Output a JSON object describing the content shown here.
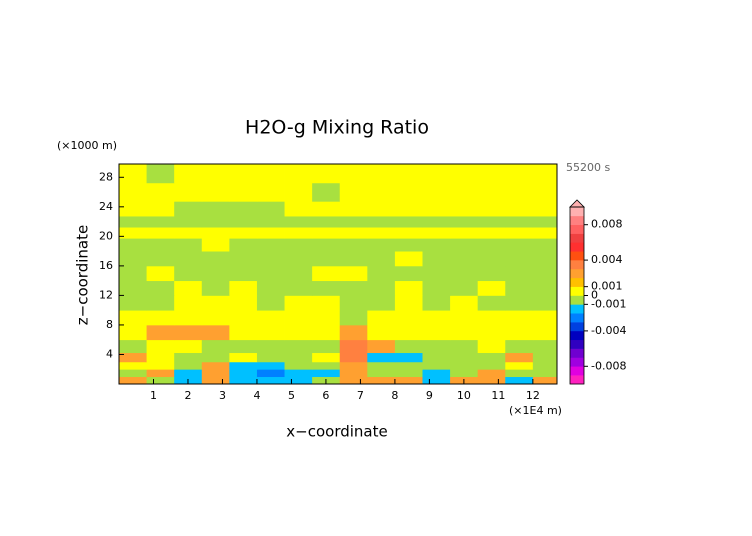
{
  "chart_data": {
    "type": "contour",
    "title": "H2O-g Mixing Ratio",
    "x_label": "x−coordinate",
    "y_label": "z−coordinate",
    "x_unit": "(×1E4 m)",
    "y_unit": "(×1000 m)",
    "time_label": "55200 s",
    "xlim": [
      0,
      12.7
    ],
    "ylim": [
      0,
      29.8
    ],
    "xticks": [
      1,
      2,
      3,
      4,
      5,
      6,
      7,
      8,
      9,
      10,
      11,
      12
    ],
    "yticks": [
      4,
      8,
      12,
      16,
      20,
      24,
      28
    ],
    "x": [
      0.4,
      1.2,
      2.0,
      2.8,
      3.6,
      4.4,
      5.2,
      6.0,
      6.8,
      7.6,
      8.4,
      9.2,
      10.0,
      10.8,
      11.6,
      12.4
    ],
    "y": [
      0.5,
      1.5,
      2.5,
      3.5,
      5,
      7,
      9,
      11,
      13,
      15,
      17,
      19,
      20.5,
      22,
      23.5,
      26,
      28.5
    ],
    "z": [
      [
        0.0025,
        -0.0005,
        -0.0015,
        0.0025,
        -0.0015,
        -0.0015,
        -0.0015,
        -0.0005,
        0.0025,
        0.0025,
        0.0025,
        -0.0015,
        0.0025,
        0.0025,
        -0.0015,
        0.0025
      ],
      [
        -0.0005,
        0.0025,
        -0.0015,
        0.0025,
        -0.0015,
        -0.0025,
        -0.0015,
        -0.0015,
        0.0025,
        -0.0005,
        -0.0005,
        -0.0015,
        -0.0005,
        0.0025,
        -0.0005,
        -0.0005
      ],
      [
        0.0005,
        0.0005,
        -0.0005,
        0.0025,
        -0.0015,
        -0.0015,
        -0.0005,
        -0.0005,
        0.0025,
        -0.0005,
        -0.0005,
        -0.0005,
        -0.0005,
        -0.0005,
        0.0005,
        -0.0005
      ],
      [
        0.0025,
        0.0005,
        -0.0005,
        -0.0005,
        0.0005,
        -0.0005,
        -0.0005,
        0.0005,
        0.0035,
        -0.0015,
        -0.0015,
        -0.0005,
        -0.0005,
        -0.0005,
        0.0025,
        -0.0005
      ],
      [
        -0.0005,
        0.0005,
        0.0005,
        -0.0005,
        -0.0005,
        -0.0005,
        -0.0005,
        -0.0005,
        0.0035,
        0.0025,
        -0.0005,
        -0.0005,
        -0.0005,
        0.0005,
        -0.0005,
        -0.0005
      ],
      [
        0.0005,
        0.0025,
        0.0025,
        0.0025,
        0.0005,
        0.0005,
        0.0005,
        0.0005,
        0.0025,
        0.0005,
        0.0005,
        0.0005,
        0.0005,
        0.0005,
        0.0005,
        0.0005
      ],
      [
        0.0005,
        0.0005,
        0.0005,
        0.0005,
        0.0005,
        0.0005,
        0.0005,
        0.0005,
        -0.0005,
        0.0005,
        0.0005,
        0.0005,
        0.0005,
        0.0005,
        0.0005,
        0.0005
      ],
      [
        -0.0005,
        -0.0005,
        0.0005,
        0.0005,
        0.0005,
        -0.0005,
        0.0005,
        0.0005,
        -0.0005,
        -0.0005,
        0.0005,
        -0.0005,
        0.0005,
        -0.0005,
        -0.0005,
        -0.0005
      ],
      [
        -0.0005,
        -0.0005,
        0.0005,
        -0.0005,
        0.0005,
        -0.0005,
        -0.0005,
        -0.0005,
        -0.0005,
        -0.0005,
        0.0005,
        -0.0005,
        -0.0005,
        0.0005,
        -0.0005,
        -0.0005
      ],
      [
        -0.0005,
        0.0005,
        -0.0005,
        -0.0005,
        -0.0005,
        -0.0005,
        -0.0005,
        0.0005,
        0.0005,
        -0.0005,
        -0.0005,
        -0.0005,
        -0.0005,
        -0.0005,
        -0.0005,
        -0.0005
      ],
      [
        -0.0005,
        -0.0005,
        -0.0005,
        -0.0005,
        -0.0005,
        -0.0005,
        -0.0005,
        -0.0005,
        -0.0005,
        -0.0005,
        0.0005,
        -0.0005,
        -0.0005,
        -0.0005,
        -0.0005,
        -0.0005
      ],
      [
        -0.0005,
        -0.0005,
        -0.0005,
        0.0005,
        -0.0005,
        -0.0005,
        -0.0005,
        -0.0005,
        -0.0005,
        -0.0005,
        -0.0005,
        -0.0005,
        -0.0005,
        -0.0005,
        -0.0005,
        -0.0005
      ],
      [
        0.0005,
        0.0005,
        0.0005,
        0.0005,
        0.0005,
        0.0005,
        0.0005,
        0.0005,
        0.0005,
        0.0005,
        0.0005,
        0.0005,
        0.0005,
        0.0005,
        0.0005,
        0.0005
      ],
      [
        -0.0005,
        -0.0005,
        -0.0005,
        -0.0005,
        -0.0005,
        -0.0005,
        -0.0005,
        -0.0005,
        -0.0005,
        -0.0005,
        -0.0005,
        -0.0005,
        -0.0005,
        -0.0005,
        -0.0005,
        -0.0005
      ],
      [
        0.0005,
        0.0005,
        -0.0005,
        -0.0005,
        -0.0005,
        -0.0005,
        0.0005,
        0.0005,
        0.0005,
        0.0005,
        0.0005,
        0.0005,
        0.0005,
        0.0005,
        0.0005,
        0.0005
      ],
      [
        0.0005,
        0.0005,
        0.0005,
        0.0005,
        0.0005,
        0.0005,
        0.0005,
        -0.0005,
        0.0005,
        0.0005,
        0.0005,
        0.0005,
        0.0005,
        0.0005,
        0.0005,
        0.0005
      ],
      [
        0.0005,
        -0.0005,
        0.0005,
        0.0005,
        0.0005,
        0.0005,
        0.0005,
        0.0005,
        0.0005,
        0.0005,
        0.0005,
        0.0005,
        0.0005,
        0.0005,
        0.0005,
        0.0005
      ]
    ],
    "colorbar": {
      "lim": [
        -0.01,
        0.01
      ],
      "ticks": [
        0.008,
        0.004,
        0.001,
        0,
        -0.001,
        -0.004,
        -0.008
      ],
      "colors": [
        "#ff20c0",
        "#e000e0",
        "#a000e0",
        "#7000d0",
        "#3000c0",
        "#0000c0",
        "#0040e0",
        "#0080ff",
        "#00c0ff",
        "#a8e040",
        "#ffff00",
        "#ffc000",
        "#ffa030",
        "#ff8040",
        "#ff5010",
        "#ff3030",
        "#f04040",
        "#ff6060",
        "#ff8080",
        "#ffb0b0"
      ]
    }
  }
}
